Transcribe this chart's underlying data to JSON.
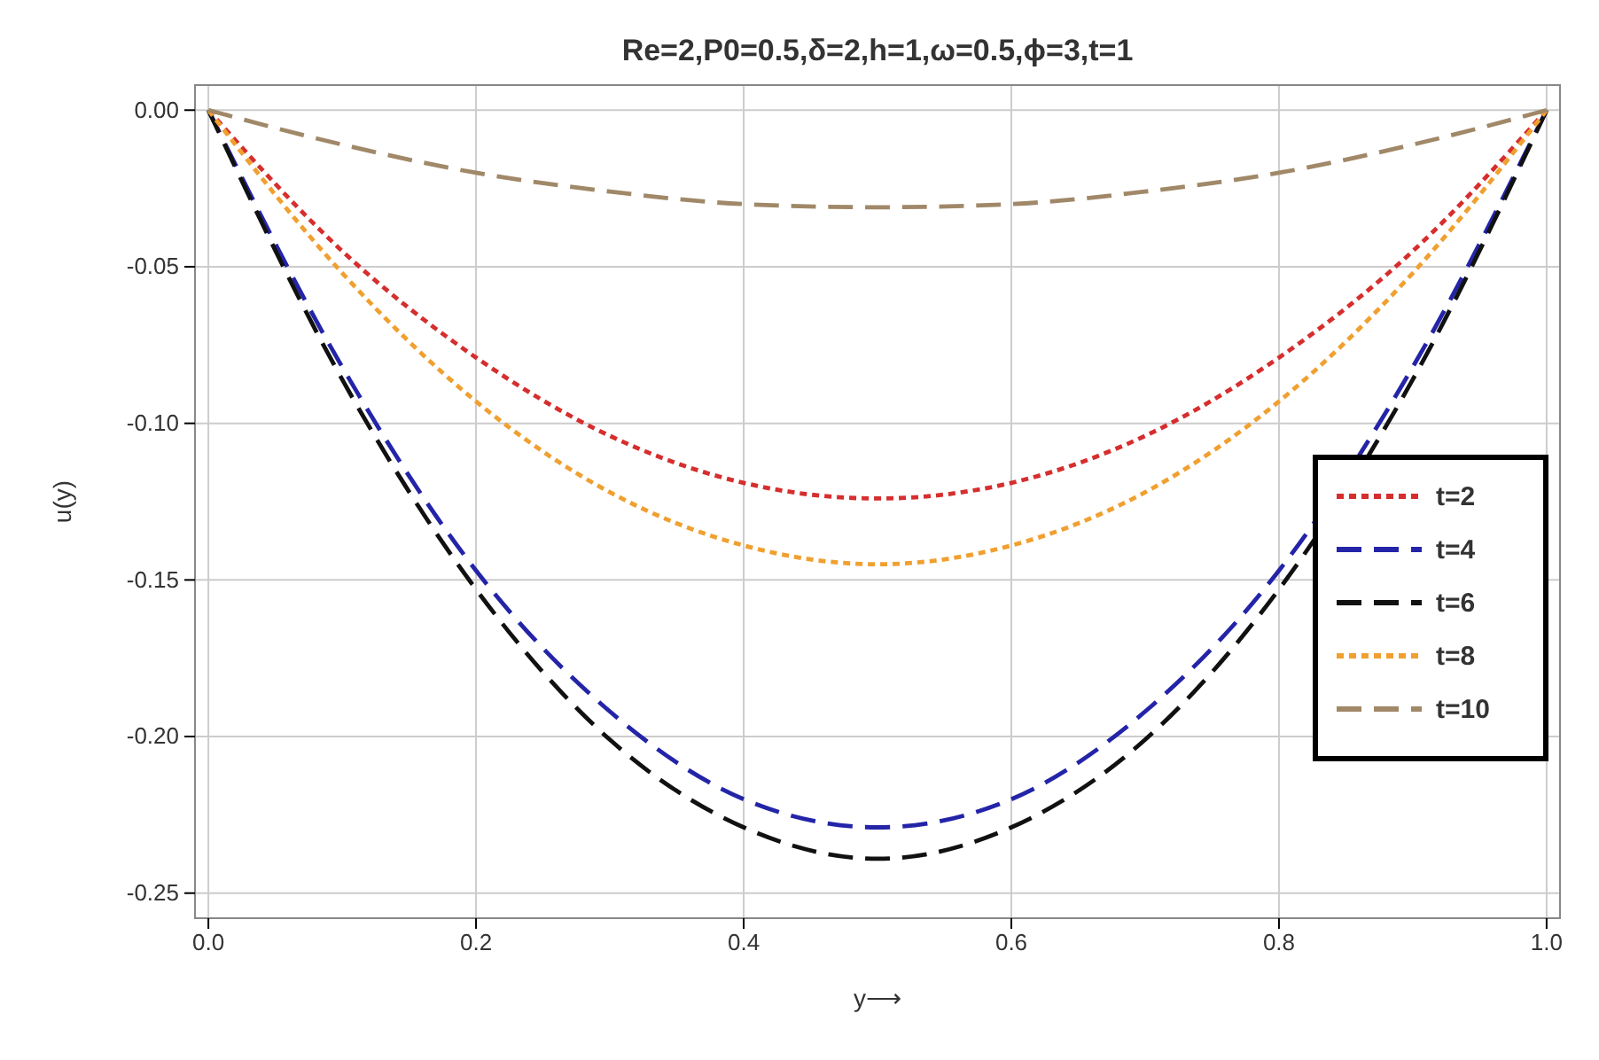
{
  "chart_data": {
    "type": "line",
    "title": "Re=2,P0=0.5,δ=2,h=1,ω=0.5,ϕ=3,t=1",
    "xlabel": "y⟶",
    "ylabel": "u(y)",
    "x": [
      0,
      0.1,
      0.2,
      0.3,
      0.4,
      0.5,
      0.6,
      0.7,
      0.8,
      0.9,
      1
    ],
    "xlim": [
      -0.01,
      1.01
    ],
    "ylim": [
      -0.258,
      0.008
    ],
    "xticks": [
      {
        "value": 0,
        "label": "0.0"
      },
      {
        "value": 0.2,
        "label": "0.2"
      },
      {
        "value": 0.4,
        "label": "0.4"
      },
      {
        "value": 0.6,
        "label": "0.6"
      },
      {
        "value": 0.8,
        "label": "0.8"
      },
      {
        "value": 1,
        "label": "1.0"
      }
    ],
    "yticks": [
      {
        "value": 0,
        "label": "0.00"
      },
      {
        "value": -0.05,
        "label": "-0.05"
      },
      {
        "value": -0.1,
        "label": "-0.10"
      },
      {
        "value": -0.15,
        "label": "-0.15"
      },
      {
        "value": -0.2,
        "label": "-0.20"
      },
      {
        "value": -0.25,
        "label": "-0.25"
      }
    ],
    "grid": true,
    "legend": "right",
    "marker": "none",
    "series": [
      {
        "name": "t=2",
        "color": "#d62e2e",
        "line_style": "dotted",
        "values": [
          0,
          -0.045,
          -0.079,
          -0.104,
          -0.119,
          -0.124,
          -0.119,
          -0.104,
          -0.079,
          -0.045,
          0
        ]
      },
      {
        "name": "t=4",
        "color": "#2424a8",
        "line_style": "dashed",
        "values": [
          0,
          -0.082,
          -0.147,
          -0.192,
          -0.22,
          -0.229,
          -0.22,
          -0.192,
          -0.147,
          -0.082,
          0
        ]
      },
      {
        "name": "t=6",
        "color": "#111111",
        "line_style": "dashed",
        "values": [
          0,
          -0.086,
          -0.153,
          -0.201,
          -0.229,
          -0.239,
          -0.229,
          -0.201,
          -0.153,
          -0.086,
          0
        ]
      },
      {
        "name": "t=8",
        "color": "#f0a030",
        "line_style": "dotted",
        "values": [
          0,
          -0.052,
          -0.093,
          -0.122,
          -0.139,
          -0.145,
          -0.139,
          -0.122,
          -0.093,
          -0.052,
          0
        ]
      },
      {
        "name": "t=10",
        "color": "#a08868",
        "line_style": "dashed",
        "values": [
          0,
          -0.011,
          -0.02,
          -0.026,
          -0.03,
          -0.031,
          -0.03,
          -0.026,
          -0.02,
          -0.011,
          0
        ]
      }
    ]
  }
}
